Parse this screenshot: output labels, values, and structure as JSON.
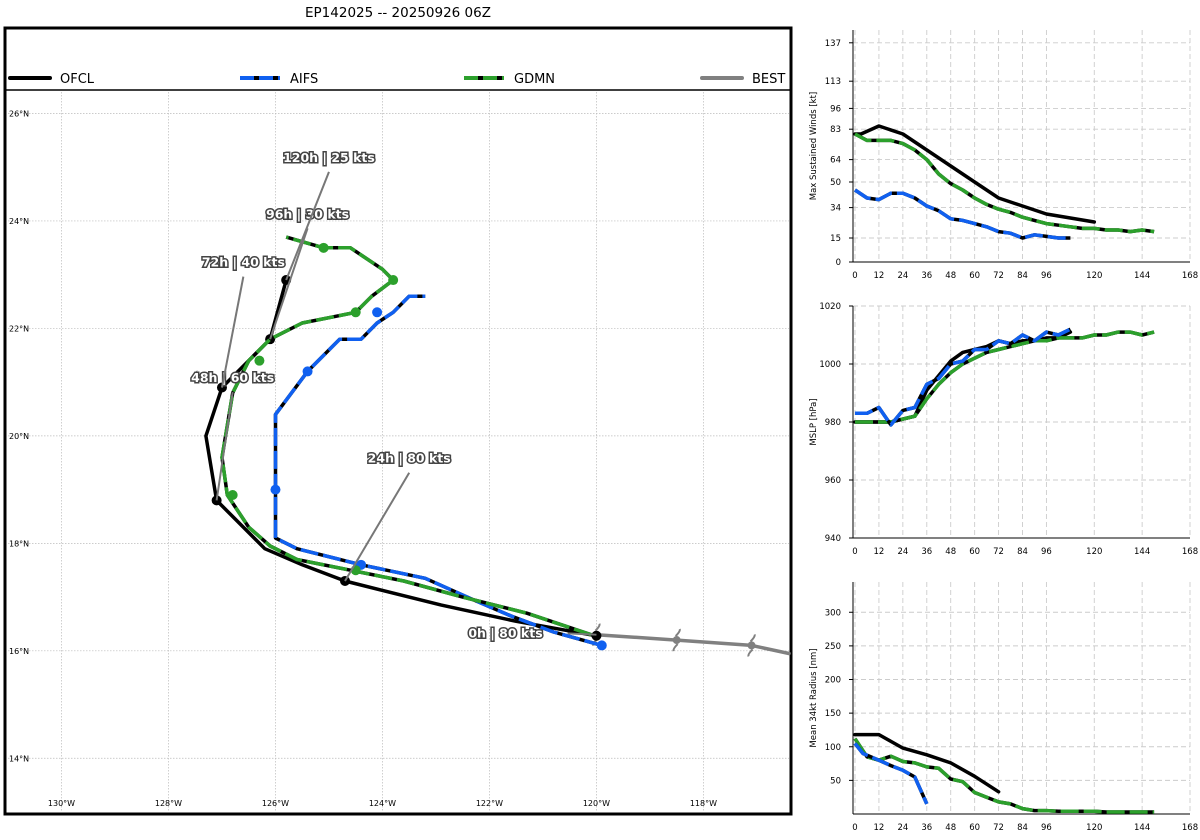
{
  "title": "EP142025 -- 20250926 06Z",
  "colors": {
    "OFCL": "#000000",
    "AIFS": "#1060f0",
    "GDMN": "#2ca02c",
    "BEST": "#808080"
  },
  "legend": [
    {
      "name": "OFCL",
      "color": "#000000"
    },
    {
      "name": "AIFS",
      "color": "#1060f0"
    },
    {
      "name": "GDMN",
      "color": "#2ca02c"
    },
    {
      "name": "BEST",
      "color": "#808080"
    }
  ],
  "chart_data": [
    {
      "type": "map-track",
      "lon_range": [
        -131,
        -116.4
      ],
      "lat_range": [
        13.0,
        26.4
      ],
      "lon_ticks": [
        -130,
        -128,
        -126,
        -124,
        -122,
        -120,
        -118
      ],
      "lon_tick_labels": [
        "130°W",
        "128°W",
        "126°W",
        "124°W",
        "122°W",
        "120°W",
        "118°W"
      ],
      "lat_ticks": [
        14,
        16,
        18,
        20,
        22,
        24,
        26
      ],
      "lat_tick_labels": [
        "14°N",
        "16°N",
        "18°N",
        "20°N",
        "22°N",
        "24°N",
        "26°N"
      ],
      "tracks": [
        {
          "name": "BEST",
          "points": [
            [
              -116.4,
              15.95
            ],
            [
              -117.1,
              16.1
            ],
            [
              -118.5,
              16.2
            ],
            [
              -120.0,
              16.3
            ]
          ],
          "storm_symbols": [
            [
              -117.1,
              16.1
            ],
            [
              -118.5,
              16.2
            ],
            [
              -120.0,
              16.3
            ]
          ]
        },
        {
          "name": "OFCL",
          "points": [
            [
              -120.0,
              16.28
            ],
            [
              -121.5,
              16.55
            ],
            [
              -122.9,
              16.85
            ],
            [
              -124.7,
              17.3
            ],
            [
              -125.5,
              17.6
            ],
            [
              -126.2,
              17.9
            ],
            [
              -127.1,
              18.8
            ],
            [
              -127.3,
              20.0
            ],
            [
              -127.0,
              20.9
            ],
            [
              -126.1,
              21.8
            ],
            [
              -125.8,
              22.9
            ]
          ],
          "markers": [
            [
              -120.0,
              16.28
            ],
            [
              -124.7,
              17.3
            ],
            [
              -127.1,
              18.8
            ],
            [
              -127.0,
              20.9
            ],
            [
              -126.1,
              21.8
            ],
            [
              -125.8,
              22.9
            ]
          ]
        },
        {
          "name": "AIFS",
          "points": [
            [
              -119.9,
              16.1
            ],
            [
              -120.8,
              16.35
            ],
            [
              -121.6,
              16.65
            ],
            [
              -122.3,
              16.95
            ],
            [
              -123.2,
              17.35
            ],
            [
              -124.4,
              17.6
            ],
            [
              -125.6,
              17.9
            ],
            [
              -126.0,
              18.1
            ],
            [
              -126.0,
              19.0
            ],
            [
              -126.0,
              20.4
            ],
            [
              -125.4,
              21.2
            ],
            [
              -124.8,
              21.8
            ],
            [
              -124.4,
              21.8
            ],
            [
              -124.1,
              22.1
            ],
            [
              -123.8,
              22.3
            ],
            [
              -123.5,
              22.6
            ],
            [
              -123.2,
              22.6
            ]
          ],
          "markers": [
            [
              -119.9,
              16.1
            ],
            [
              -124.4,
              17.6
            ],
            [
              -126.0,
              19.0
            ],
            [
              -125.4,
              21.2
            ],
            [
              -124.1,
              22.3
            ]
          ]
        },
        {
          "name": "GDMN",
          "points": [
            [
              -120.1,
              16.3
            ],
            [
              -121.3,
              16.7
            ],
            [
              -122.5,
              17.0
            ],
            [
              -123.6,
              17.3
            ],
            [
              -124.6,
              17.5
            ],
            [
              -125.6,
              17.7
            ],
            [
              -126.1,
              17.95
            ],
            [
              -126.5,
              18.3
            ],
            [
              -126.9,
              18.9
            ],
            [
              -127.0,
              19.6
            ],
            [
              -126.8,
              20.8
            ],
            [
              -126.5,
              21.4
            ],
            [
              -126.1,
              21.8
            ],
            [
              -125.5,
              22.1
            ],
            [
              -125.0,
              22.2
            ],
            [
              -124.5,
              22.3
            ],
            [
              -124.2,
              22.6
            ],
            [
              -123.8,
              22.9
            ],
            [
              -124.0,
              23.1
            ],
            [
              -124.6,
              23.5
            ],
            [
              -125.1,
              23.5
            ],
            [
              -125.8,
              23.7
            ]
          ],
          "markers": [
            [
              -124.5,
              17.5
            ],
            [
              -126.8,
              18.9
            ],
            [
              -126.3,
              21.4
            ],
            [
              -124.5,
              22.3
            ],
            [
              -123.8,
              22.9
            ],
            [
              -125.1,
              23.5
            ]
          ]
        }
      ],
      "annotations": [
        {
          "text": "0h | 80 kts",
          "point": [
            -120.0,
            16.3
          ],
          "text_pos": [
            -121.7,
            16.25
          ]
        },
        {
          "text": "24h | 80 kts",
          "point": [
            -124.7,
            17.3
          ],
          "text_pos": [
            -123.5,
            19.5
          ]
        },
        {
          "text": "48h | 60 kts",
          "point": [
            -127.1,
            18.8
          ],
          "text_pos": [
            -126.8,
            21.0
          ]
        },
        {
          "text": "72h | 40 kts",
          "point": [
            -127.0,
            20.9
          ],
          "text_pos": [
            -126.6,
            23.15
          ]
        },
        {
          "text": "96h | 30 kts",
          "point": [
            -126.1,
            21.8
          ],
          "text_pos": [
            -125.4,
            24.05
          ]
        },
        {
          "text": "120h | 25 kts",
          "point": [
            -125.8,
            22.9
          ],
          "text_pos": [
            -125.0,
            25.1
          ]
        }
      ]
    },
    {
      "type": "line",
      "ylabel": "Max Sustained Winds [kt]",
      "xlim": [
        -1,
        168
      ],
      "ylim": [
        0,
        145
      ],
      "x_ticks": [
        0,
        12,
        24,
        36,
        48,
        60,
        72,
        84,
        96,
        120,
        144,
        168
      ],
      "y_ticks": [
        0,
        15,
        34,
        50,
        64,
        83,
        96,
        113,
        137
      ],
      "series": [
        {
          "name": "OFCL",
          "x": [
            0,
            3,
            12,
            24,
            36,
            48,
            60,
            72,
            96,
            120
          ],
          "y": [
            80,
            80,
            85,
            80,
            70,
            60,
            50,
            40,
            30,
            25
          ]
        },
        {
          "name": "GDMN",
          "x": [
            0,
            6,
            12,
            18,
            24,
            30,
            36,
            42,
            48,
            54,
            60,
            66,
            72,
            78,
            84,
            90,
            96,
            102,
            108,
            114,
            120,
            126,
            132,
            138,
            144,
            150
          ],
          "y": [
            80,
            76,
            76,
            76,
            74,
            70,
            64,
            55,
            49,
            45,
            40,
            36,
            33,
            31,
            28,
            26,
            24,
            23,
            22,
            21,
            21,
            20,
            20,
            19,
            20,
            19
          ]
        },
        {
          "name": "AIFS",
          "x": [
            0,
            6,
            12,
            18,
            24,
            30,
            36,
            42,
            48,
            54,
            60,
            66,
            72,
            78,
            84,
            90,
            96,
            102,
            108
          ],
          "y": [
            45,
            40,
            39,
            43,
            43,
            40,
            35,
            32,
            27,
            26,
            24,
            22,
            19,
            18,
            15,
            17,
            16,
            15,
            15
          ]
        }
      ]
    },
    {
      "type": "line",
      "ylabel": "MSLP [hPa]",
      "xlim": [
        -1,
        168
      ],
      "ylim": [
        940,
        1020
      ],
      "x_ticks": [
        0,
        12,
        24,
        36,
        48,
        60,
        72,
        84,
        96,
        120,
        144,
        168
      ],
      "y_ticks": [
        940,
        960,
        980,
        1000,
        1020
      ],
      "series": [
        {
          "name": "OFCL",
          "x": [
            0,
            6,
            12,
            18,
            24,
            30,
            36,
            42,
            48,
            54,
            60,
            66,
            72,
            78,
            84,
            90,
            96,
            102,
            108
          ],
          "y": [
            980,
            980,
            980,
            980,
            981,
            982,
            991,
            996,
            1001,
            1004,
            1005,
            1006,
            1008,
            1007,
            1008,
            1008,
            1009,
            1009,
            1011
          ]
        },
        {
          "name": "GDMN",
          "x": [
            0,
            6,
            12,
            18,
            24,
            30,
            36,
            42,
            48,
            54,
            60,
            66,
            72,
            78,
            84,
            90,
            96,
            102,
            108,
            114,
            120,
            126,
            132,
            138,
            144,
            150
          ],
          "y": [
            980,
            980,
            980,
            980,
            981,
            982,
            988,
            993,
            997,
            1000,
            1002,
            1004,
            1005,
            1006,
            1007,
            1008,
            1008,
            1009,
            1009,
            1009,
            1010,
            1010,
            1011,
            1011,
            1010,
            1011
          ]
        },
        {
          "name": "AIFS",
          "x": [
            0,
            6,
            12,
            18,
            24,
            30,
            36,
            42,
            48,
            54,
            60,
            66,
            72,
            78,
            84,
            90,
            96,
            102,
            108
          ],
          "y": [
            983,
            983,
            985,
            979,
            984,
            985,
            993,
            995,
            1000,
            1001,
            1005,
            1005,
            1008,
            1007,
            1010,
            1008,
            1011,
            1010,
            1012
          ]
        }
      ]
    },
    {
      "type": "line",
      "ylabel": "Mean 34kt Radius [nm]",
      "xlim": [
        -1,
        168
      ],
      "ylim": [
        0,
        345
      ],
      "x_ticks": [
        0,
        12,
        24,
        36,
        48,
        60,
        72,
        84,
        96,
        120,
        144,
        168
      ],
      "y_ticks": [
        50,
        100,
        150,
        200,
        250,
        300
      ],
      "series": [
        {
          "name": "OFCL",
          "x": [
            0,
            6,
            12,
            18,
            24,
            36,
            48,
            60,
            72
          ],
          "y": [
            118,
            118,
            118,
            108,
            98,
            88,
            76,
            56,
            33
          ]
        },
        {
          "name": "GDMN",
          "x": [
            0,
            6,
            12,
            18,
            24,
            30,
            36,
            42,
            48,
            54,
            60,
            66,
            72,
            78,
            84,
            90,
            96,
            102,
            108,
            114,
            120,
            126,
            132,
            138,
            144,
            150
          ],
          "y": [
            112,
            85,
            80,
            86,
            78,
            76,
            70,
            68,
            52,
            48,
            32,
            25,
            18,
            15,
            8,
            5,
            5,
            4,
            4,
            4,
            4,
            3,
            3,
            3,
            3,
            3
          ]
        },
        {
          "name": "AIFS",
          "x": [
            0,
            4,
            12,
            18,
            24,
            30,
            36
          ],
          "y": [
            105,
            90,
            80,
            72,
            65,
            55,
            15
          ]
        }
      ]
    }
  ]
}
